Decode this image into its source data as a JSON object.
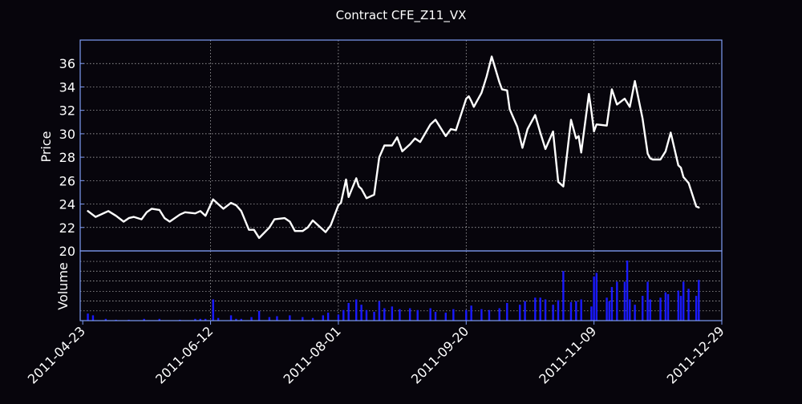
{
  "chart_data": {
    "type": "line",
    "title": "Contract CFE_Z11_VX",
    "colors": {
      "background": "#07050c",
      "price_line": "#ffffff",
      "volume_bars": "#1a1aff",
      "frame": "#7f9cf5",
      "grid": "#ffffff"
    },
    "price_panel": {
      "ylabel": "Price",
      "ylim": [
        20,
        38
      ],
      "yticks": [
        20,
        22,
        24,
        26,
        28,
        30,
        32,
        34,
        36
      ],
      "grid": true
    },
    "volume_panel": {
      "ylabel": "Volume",
      "grid": true
    },
    "xaxis": {
      "xlim": [
        "2011-04-22",
        "2011-12-29"
      ],
      "ticks": [
        "2011-04-23",
        "2011-06-12",
        "2011-08-01",
        "2011-09-20",
        "2011-11-09",
        "2011-12-29"
      ]
    },
    "series": [
      {
        "x": [
          "2011-04-25",
          "2011-04-28",
          "2011-05-03",
          "2011-05-06",
          "2011-05-09",
          "2011-05-11",
          "2011-05-13",
          "2011-05-16",
          "2011-05-18",
          "2011-05-20",
          "2011-05-23",
          "2011-05-25",
          "2011-05-27",
          "2011-05-31",
          "2011-06-02",
          "2011-06-06",
          "2011-06-08",
          "2011-06-10",
          "2011-06-13",
          "2011-06-15",
          "2011-06-17",
          "2011-06-20",
          "2011-06-22",
          "2011-06-24",
          "2011-06-27",
          "2011-06-29",
          "2011-07-01",
          "2011-07-05",
          "2011-07-07",
          "2011-07-11",
          "2011-07-13",
          "2011-07-15",
          "2011-07-18",
          "2011-07-20",
          "2011-07-22",
          "2011-07-25",
          "2011-07-27",
          "2011-07-29",
          "2011-08-01",
          "2011-08-02",
          "2011-08-04",
          "2011-08-05",
          "2011-08-08",
          "2011-08-09",
          "2011-08-10",
          "2011-08-12",
          "2011-08-15",
          "2011-08-17",
          "2011-08-19",
          "2011-08-22",
          "2011-08-24",
          "2011-08-26",
          "2011-08-29",
          "2011-08-31",
          "2011-09-02",
          "2011-09-06",
          "2011-09-08",
          "2011-09-12",
          "2011-09-14",
          "2011-09-16",
          "2011-09-20",
          "2011-09-21",
          "2011-09-22",
          "2011-09-23",
          "2011-09-26",
          "2011-09-28",
          "2011-09-30",
          "2011-10-03",
          "2011-10-04",
          "2011-10-06",
          "2011-10-07",
          "2011-10-10",
          "2011-10-12",
          "2011-10-14",
          "2011-10-17",
          "2011-10-19",
          "2011-10-21",
          "2011-10-24",
          "2011-10-26",
          "2011-10-28",
          "2011-10-31",
          "2011-11-02",
          "2011-11-03",
          "2011-11-04",
          "2011-11-07",
          "2011-11-08",
          "2011-11-09",
          "2011-11-10",
          "2011-11-14",
          "2011-11-16",
          "2011-11-18",
          "2011-11-21",
          "2011-11-23",
          "2011-11-25",
          "2011-11-28",
          "2011-11-30",
          "2011-12-01",
          "2011-12-02",
          "2011-12-05",
          "2011-12-07",
          "2011-12-09",
          "2011-12-12",
          "2011-12-13",
          "2011-12-14",
          "2011-12-16",
          "2011-12-19",
          "2011-12-20"
        ],
        "values": [
          23.4,
          22.9,
          23.4,
          23.0,
          22.5,
          22.8,
          22.9,
          22.7,
          23.3,
          23.6,
          23.5,
          22.8,
          22.5,
          23.1,
          23.3,
          23.2,
          23.4,
          23.0,
          24.4,
          24.0,
          23.6,
          24.1,
          23.9,
          23.4,
          21.8,
          21.8,
          21.1,
          22.0,
          22.7,
          22.8,
          22.5,
          21.7,
          21.7,
          22.0,
          22.6,
          22.0,
          21.6,
          22.2,
          23.9,
          24.1,
          26.1,
          24.6,
          26.2,
          25.5,
          25.3,
          24.5,
          24.8,
          28.0,
          29.0,
          29.0,
          29.7,
          28.5,
          29.1,
          29.6,
          29.3,
          30.8,
          31.2,
          29.8,
          30.4,
          30.3,
          33.0,
          33.2,
          32.8,
          32.3,
          33.5,
          34.9,
          36.6,
          34.4,
          33.8,
          33.7,
          32.1,
          30.6,
          28.8,
          30.4,
          31.6,
          30.1,
          28.7,
          30.2,
          25.9,
          25.5,
          31.2,
          29.6,
          29.8,
          28.4,
          33.4,
          31.9,
          30.2,
          30.8,
          30.7,
          33.8,
          32.5,
          33.0,
          32.3,
          34.5,
          31.3,
          28.3,
          27.9,
          27.8,
          27.8,
          28.5,
          30.1,
          27.3,
          27.1,
          26.3,
          25.8,
          23.8,
          23.7
        ]
      }
    ],
    "volume": {
      "x": [
        "2011-04-25",
        "2011-04-27",
        "2011-05-02",
        "2011-05-06",
        "2011-05-11",
        "2011-05-17",
        "2011-05-23",
        "2011-05-31",
        "2011-06-06",
        "2011-06-08",
        "2011-06-10",
        "2011-06-13",
        "2011-06-15",
        "2011-06-20",
        "2011-06-22",
        "2011-06-24",
        "2011-06-28",
        "2011-07-01",
        "2011-07-05",
        "2011-07-08",
        "2011-07-13",
        "2011-07-18",
        "2011-07-22",
        "2011-07-26",
        "2011-07-28",
        "2011-08-01",
        "2011-08-03",
        "2011-08-05",
        "2011-08-08",
        "2011-08-10",
        "2011-08-12",
        "2011-08-15",
        "2011-08-17",
        "2011-08-19",
        "2011-08-22",
        "2011-08-25",
        "2011-08-29",
        "2011-09-01",
        "2011-09-06",
        "2011-09-08",
        "2011-09-12",
        "2011-09-15",
        "2011-09-20",
        "2011-09-22",
        "2011-09-26",
        "2011-09-29",
        "2011-10-03",
        "2011-10-06",
        "2011-10-11",
        "2011-10-13",
        "2011-10-17",
        "2011-10-19",
        "2011-10-21",
        "2011-10-24",
        "2011-10-26",
        "2011-10-28",
        "2011-10-31",
        "2011-11-02",
        "2011-11-04",
        "2011-11-08",
        "2011-11-09",
        "2011-11-10",
        "2011-11-14",
        "2011-11-15",
        "2011-11-16",
        "2011-11-18",
        "2011-11-21",
        "2011-11-22",
        "2011-11-23",
        "2011-11-25",
        "2011-11-28",
        "2011-11-30",
        "2011-12-01",
        "2011-12-05",
        "2011-12-07",
        "2011-12-08",
        "2011-12-12",
        "2011-12-13",
        "2011-12-14",
        "2011-12-16",
        "2011-12-19",
        "2011-12-20"
      ],
      "values": [
        8,
        6,
        2,
        1,
        1,
        2,
        2,
        1,
        2,
        2,
        2,
        24,
        3,
        6,
        2,
        2,
        4,
        11,
        4,
        5,
        6,
        4,
        3,
        6,
        9,
        7,
        12,
        20,
        24,
        18,
        12,
        10,
        22,
        14,
        16,
        13,
        14,
        12,
        14,
        10,
        9,
        13,
        12,
        17,
        13,
        12,
        14,
        20,
        18,
        22,
        26,
        26,
        24,
        18,
        23,
        56,
        21,
        22,
        24,
        16,
        50,
        54,
        26,
        22,
        38,
        44,
        44,
        68,
        24,
        18,
        28,
        44,
        24,
        26,
        32,
        30,
        34,
        28,
        44,
        36,
        28,
        46
      ]
    }
  }
}
